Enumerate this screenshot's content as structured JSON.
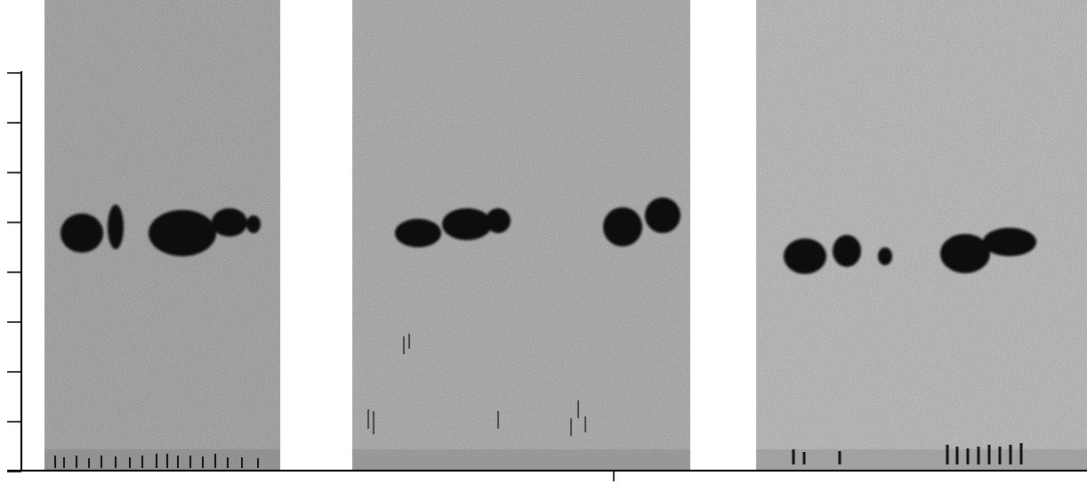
{
  "figure": {
    "panel_count": 3,
    "y_axis_tick_count": 9,
    "x_axis_tick_count": 1,
    "colors": {
      "page_background": "#ffffff",
      "panel_background": "#a9a9a9",
      "panel_background_light": "#bdbdbd",
      "signal": "#0a0a0a",
      "axis": "#000000"
    }
  }
}
